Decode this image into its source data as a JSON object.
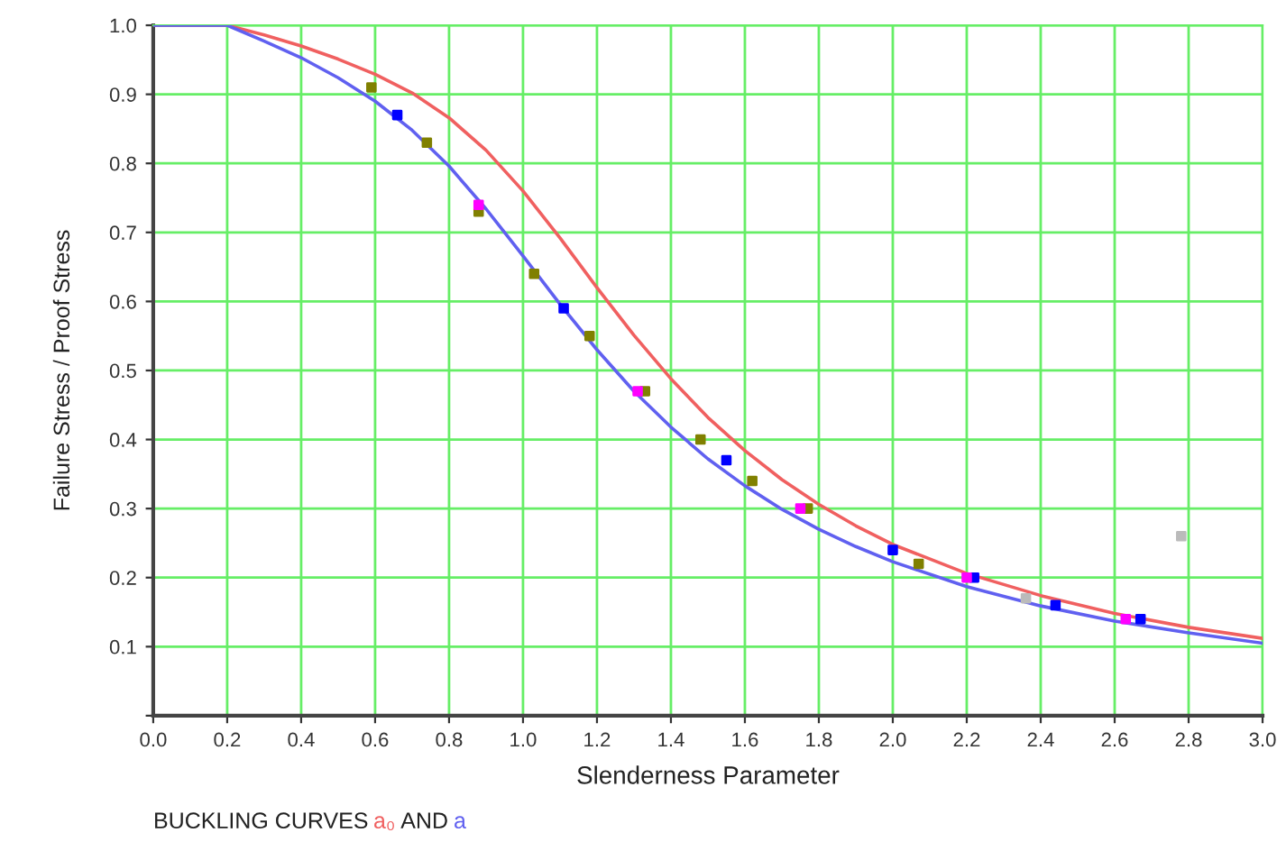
{
  "chart_data": {
    "type": "line",
    "xlabel": "Slenderness Parameter",
    "ylabel": "Failure Stress / Proof Stress",
    "annotations": [
      "BUCKLING CURVES",
      "AND"
    ],
    "xlim": [
      0,
      3.0
    ],
    "xticks": [
      {
        "value": 0,
        "label": "0.0"
      },
      0.2,
      0.4,
      0.6,
      0.8,
      {
        "value": 1,
        "label": "1.0"
      },
      1.2,
      1.4,
      1.6,
      1.8,
      {
        "value": 2,
        "label": "2.0"
      },
      2.2,
      2.4,
      2.6,
      2.8,
      {
        "value": 3,
        "label": "3.0"
      }
    ],
    "ylim": [
      0,
      1.0
    ],
    "yticks": [
      {
        "value": 0,
        "label": null
      },
      0.1,
      0.2,
      0.3,
      0.4,
      0.5,
      0.6,
      0.7,
      0.8,
      0.9,
      {
        "value": 1,
        "label": "1.0"
      }
    ],
    "grid": true,
    "marker": "none",
    "line_style": "solid",
    "series": [
      {
        "name": "a₀",
        "color": "#f06060",
        "x": [
          0,
          0.2,
          0.3,
          0.4,
          0.5,
          0.6,
          0.7,
          0.8,
          0.9,
          1.0,
          1.1,
          1.2,
          1.3,
          1.4,
          1.5,
          1.6,
          1.7,
          1.8,
          1.9,
          2.0,
          2.2,
          2.4,
          2.6,
          2.8,
          3.0
        ],
        "values": [
          1.0,
          1.0,
          0.986,
          0.97,
          0.951,
          0.929,
          0.902,
          0.866,
          0.819,
          0.76,
          0.692,
          0.62,
          0.551,
          0.488,
          0.432,
          0.384,
          0.342,
          0.306,
          0.275,
          0.248,
          0.206,
          0.174,
          0.148,
          0.128,
          0.112
        ]
      },
      {
        "name": "a",
        "color": "#6060f0",
        "x": [
          0,
          0.2,
          0.3,
          0.4,
          0.5,
          0.6,
          0.7,
          0.8,
          0.9,
          1.0,
          1.1,
          1.2,
          1.3,
          1.4,
          1.5,
          1.6,
          1.7,
          1.8,
          1.9,
          2.0,
          2.2,
          2.4,
          2.6,
          2.8,
          3.0
        ],
        "values": [
          1.0,
          1.0,
          0.977,
          0.953,
          0.924,
          0.89,
          0.848,
          0.796,
          0.734,
          0.666,
          0.596,
          0.53,
          0.47,
          0.418,
          0.372,
          0.333,
          0.299,
          0.27,
          0.245,
          0.223,
          0.187,
          0.159,
          0.137,
          0.12,
          0.105
        ]
      },
      {
        "type": "scatter",
        "marker": "square",
        "color": "#808000",
        "x": [
          0.59,
          0.74,
          0.88,
          1.03,
          1.18,
          1.33,
          1.48,
          1.62,
          1.77,
          2.07
        ],
        "values": [
          0.91,
          0.83,
          0.73,
          0.64,
          0.55,
          0.47,
          0.4,
          0.34,
          0.3,
          0.22
        ]
      },
      {
        "type": "scatter",
        "marker": "square",
        "color": "#0000ff",
        "x": [
          0.66,
          1.11,
          1.55,
          2.0,
          2.22,
          2.44,
          2.67
        ],
        "values": [
          0.87,
          0.59,
          0.37,
          0.24,
          0.2,
          0.16,
          0.14
        ]
      },
      {
        "type": "scatter",
        "marker": "square",
        "color": "#ff00ff",
        "x": [
          0.88,
          1.31,
          1.75,
          2.2,
          2.63
        ],
        "values": [
          0.74,
          0.47,
          0.3,
          0.2,
          0.14
        ]
      },
      {
        "type": "scatter",
        "marker": "square",
        "color": "#bbbbbb",
        "x": [
          2.36,
          2.78
        ],
        "values": [
          0.17,
          0.26
        ]
      }
    ]
  }
}
